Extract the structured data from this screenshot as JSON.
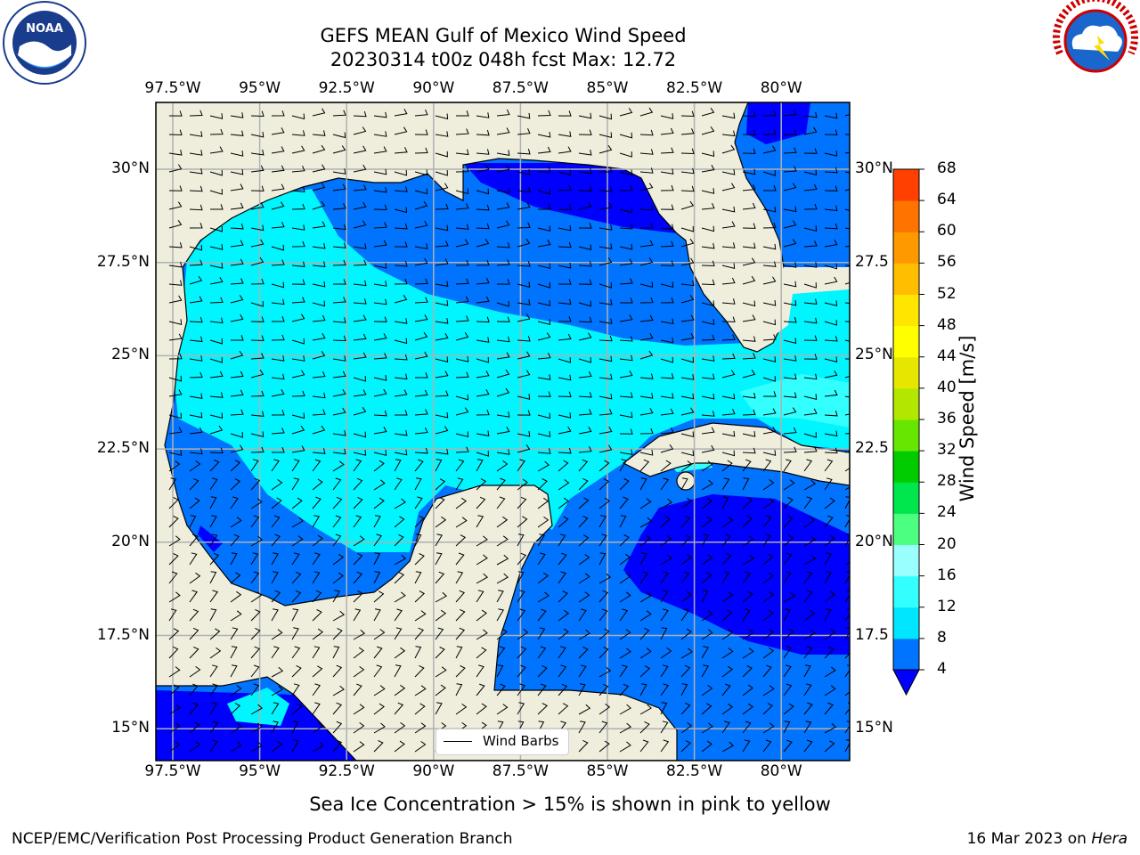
{
  "title_line1": "GEFS MEAN Gulf of Mexico Wind Speed",
  "title_line2": "20230314 t00z 048h fcst   Max: 12.72",
  "lon_ticks": [
    "97.5°W",
    "95°W",
    "92.5°W",
    "90°W",
    "87.5°W",
    "85°W",
    "82.5°W",
    "80°W"
  ],
  "lat_ticks": [
    "30°N",
    "27.5°N",
    "25°N",
    "22.5°N",
    "20°N",
    "17.5°N",
    "15°N"
  ],
  "lat_ticks_right": [
    "30°N",
    "27.5",
    "25°N",
    "22.5",
    "20°N",
    "17.5",
    "15°N"
  ],
  "colorbar": {
    "label": "Wind Speed [m/s]",
    "ticks": [
      "4",
      "8",
      "12",
      "16",
      "20",
      "24",
      "28",
      "32",
      "36",
      "40",
      "44",
      "48",
      "52",
      "56",
      "60",
      "64",
      "68"
    ],
    "colors": [
      "#0073ff",
      "#00e6ff",
      "#33ffff",
      "#99ffff",
      "#4dff80",
      "#00e64d",
      "#00cc00",
      "#66e600",
      "#b3e600",
      "#e6e600",
      "#ffff00",
      "#ffe600",
      "#ffbf00",
      "#ff9900",
      "#ff7300",
      "#ff4000",
      "#ff0000"
    ],
    "under_color": "#0000ff"
  },
  "legend_label": "Wind Barbs",
  "sea_ice_note": "Sea Ice Concentration > 15% is shown in pink to yellow",
  "footer_left": "NCEP/EMC/Verification Post Processing Product Generation Branch",
  "footer_right_date": "16 Mar 2023 on ",
  "footer_right_host": "Hera",
  "logos": {
    "left": "NOAA",
    "right": "NATIONAL WEATHER SERVICE"
  },
  "colors": {
    "land": "#efeedd",
    "calm": "#0000ff",
    "light": "#0073ff",
    "moderate": "#00f5ff",
    "fresh": "#33ffff",
    "grid": "#b0b0b0"
  }
}
